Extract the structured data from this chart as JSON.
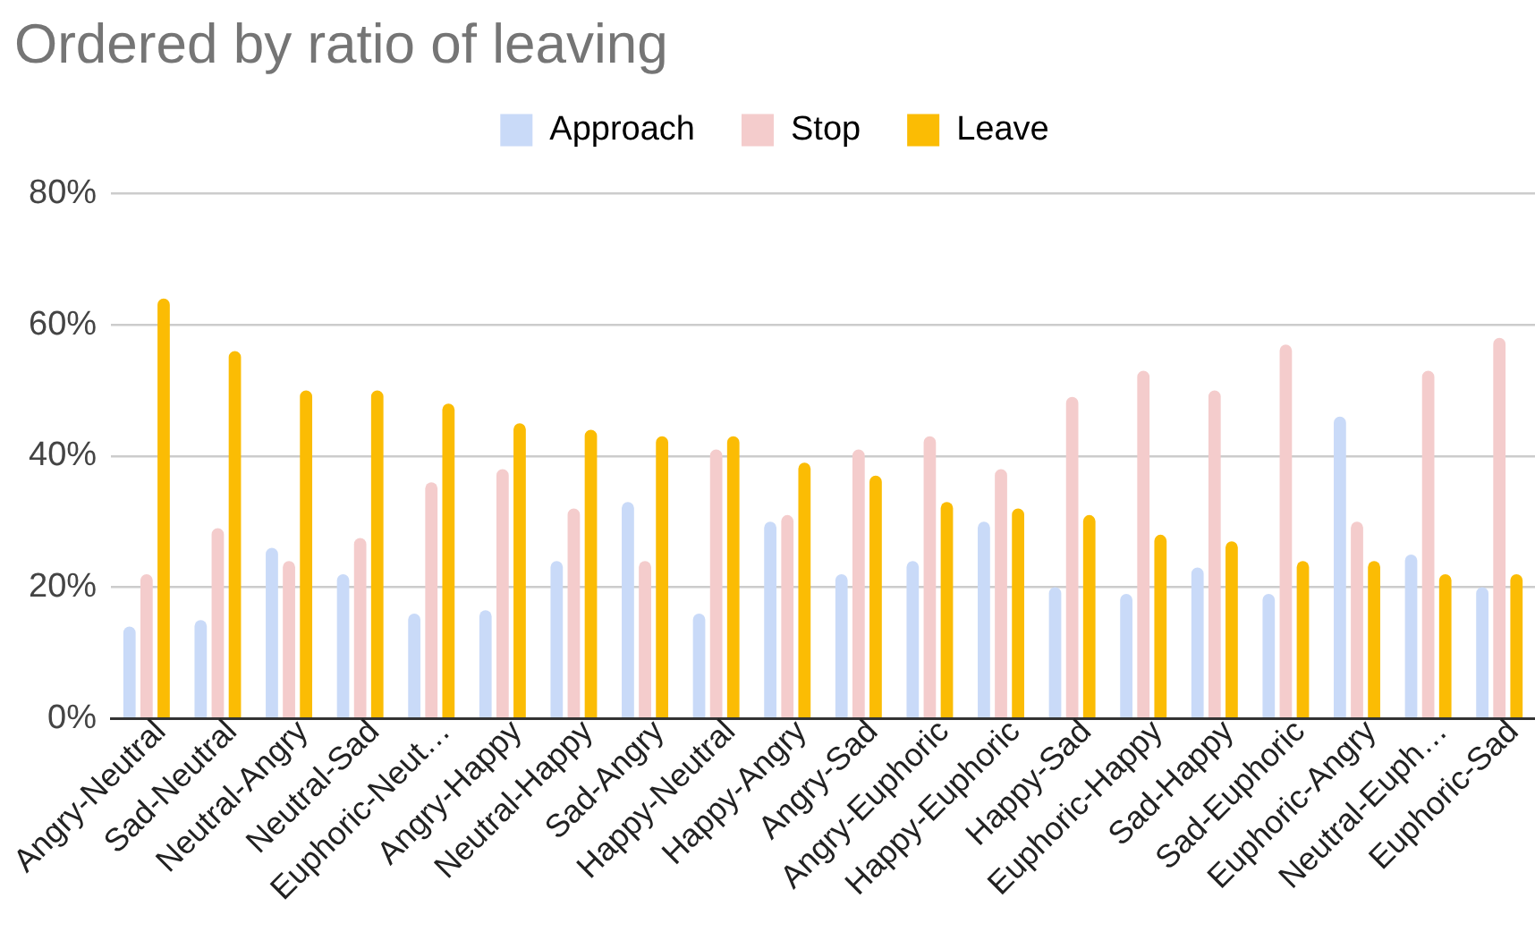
{
  "chart_data": {
    "type": "bar",
    "title": "Ordered by ratio of leaving",
    "categories": [
      "Angry-Neutral",
      "Sad-Neutral",
      "Neutral-Angry",
      "Neutral-Sad",
      "Euphoric-Neut…",
      "Angry-Happy",
      "Neutral-Happy",
      "Sad-Angry",
      "Happy-Neutral",
      "Happy-Angry",
      "Angry-Sad",
      "Angry-Euphoric",
      "Happy-Euphoric",
      "Happy-Sad",
      "Euphoric-Happy",
      "Sad-Happy",
      "Sad-Euphoric",
      "Euphoric-Angry",
      "Neutral-Euph…",
      "Euphoric-Sad"
    ],
    "series": [
      {
        "name": "Approach",
        "color": "#c9daf8",
        "values": [
          14,
          15,
          26,
          22,
          16,
          16.5,
          24,
          33,
          16,
          30,
          22,
          24,
          30,
          20,
          19,
          23,
          19,
          46,
          25,
          20
        ]
      },
      {
        "name": "Stop",
        "color": "#f4cccc",
        "values": [
          22,
          29,
          24,
          27.5,
          36,
          38,
          32,
          24,
          41,
          31,
          41,
          43,
          38,
          49,
          53,
          50,
          57,
          30,
          53,
          58
        ]
      },
      {
        "name": "Leave",
        "color": "#fbbc04",
        "values": [
          64,
          56,
          50,
          50,
          48,
          45,
          44,
          43,
          43,
          39,
          37,
          33,
          32,
          31,
          28,
          27,
          24,
          24,
          22,
          22
        ]
      }
    ],
    "ylim": [
      0,
      80
    ],
    "yticks": [
      {
        "value": 0,
        "label": "0%"
      },
      {
        "value": 20,
        "label": "20%"
      },
      {
        "value": 40,
        "label": "40%"
      },
      {
        "value": 60,
        "label": "60%"
      },
      {
        "value": 80,
        "label": "80%"
      }
    ],
    "grid": "y",
    "legend": "top"
  }
}
